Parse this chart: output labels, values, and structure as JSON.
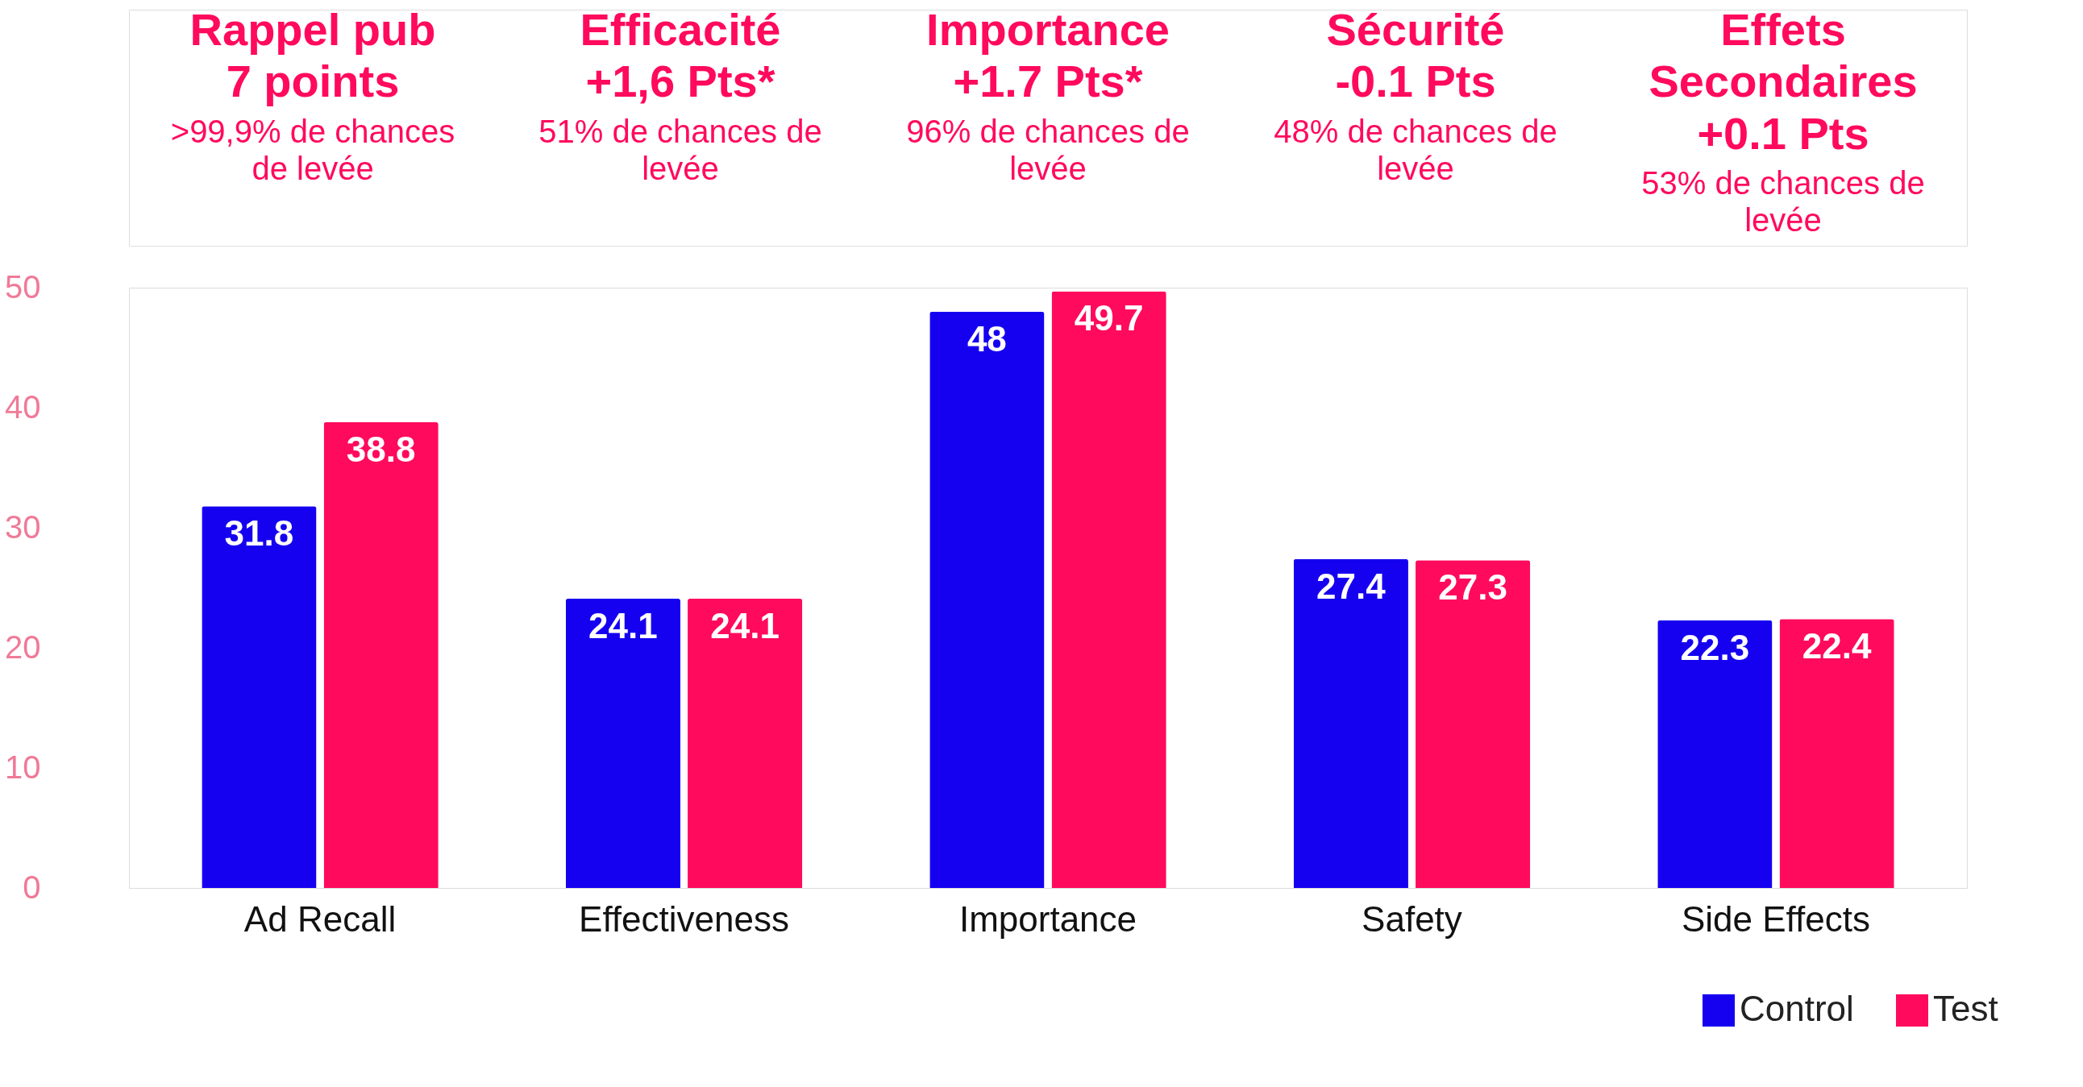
{
  "chart_data": {
    "type": "bar",
    "categories": [
      "Ad Recall",
      "Effectiveness",
      "Importance",
      "Safety",
      "Side Effects"
    ],
    "series": [
      {
        "name": "Control",
        "color": "#1500f0",
        "values": [
          31.8,
          24.1,
          48,
          27.4,
          22.3
        ]
      },
      {
        "name": "Test",
        "color": "#ff0a5c",
        "values": [
          38.8,
          24.1,
          49.7,
          27.3,
          22.4
        ]
      }
    ],
    "ylim": [
      0,
      50
    ],
    "yticks": [
      0,
      10,
      20,
      30,
      40,
      50
    ],
    "data_labels": true,
    "grid": false,
    "legend": "bottom right",
    "annotations": [
      "Rappel pub\n7 points",
      ">99,9% de chances\nde levée",
      "Efficacité\n+1,6 Pts*",
      "51% de chances de\nlevée",
      "Importance\n+1.7 Pts*",
      "96% de chances de\nlevée",
      "Sécurité\n-0.1 Pts",
      "48% de chances de\nlevée",
      "Effets\nSecondaires\n+0.1 Pts",
      "53% de chances de\nlevée"
    ]
  }
}
